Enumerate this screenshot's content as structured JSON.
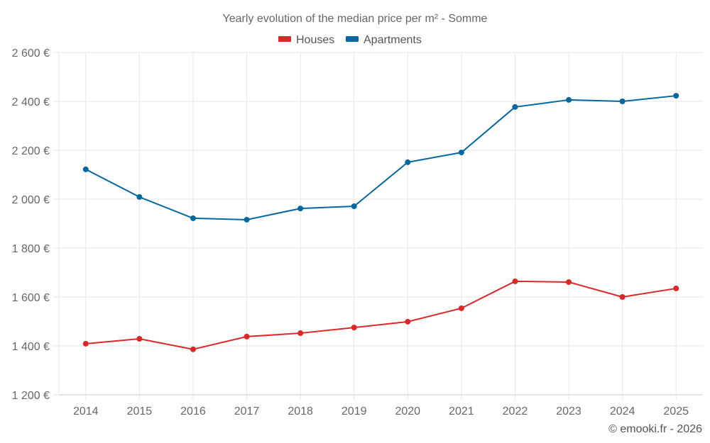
{
  "chart_data": {
    "type": "line",
    "title": "Yearly evolution of the median price per m² - Somme",
    "xlabel": "",
    "ylabel": "",
    "categories": [
      "2014",
      "2015",
      "2016",
      "2017",
      "2018",
      "2019",
      "2020",
      "2021",
      "2022",
      "2023",
      "2024",
      "2025"
    ],
    "ylim": [
      1200,
      2600
    ],
    "yticks": [
      1200,
      1400,
      1600,
      1800,
      2000,
      2200,
      2400,
      2600
    ],
    "ytick_labels": [
      "1 200 €",
      "1 400 €",
      "1 600 €",
      "1 800 €",
      "2 000 €",
      "2 200 €",
      "2 400 €",
      "2 600 €"
    ],
    "grid": true,
    "legend_position": "top-center",
    "series": [
      {
        "name": "Houses",
        "color": "#dd2727",
        "values": [
          1409,
          1429,
          1386,
          1438,
          1452,
          1475,
          1499,
          1554,
          1664,
          1661,
          1600,
          1635
        ]
      },
      {
        "name": "Apartments",
        "color": "#04679e",
        "values": [
          2122,
          2009,
          1922,
          1916,
          1962,
          1971,
          2151,
          2191,
          2377,
          2406,
          2400,
          2423
        ]
      }
    ]
  },
  "credit": "© emooki.fr - 2026"
}
